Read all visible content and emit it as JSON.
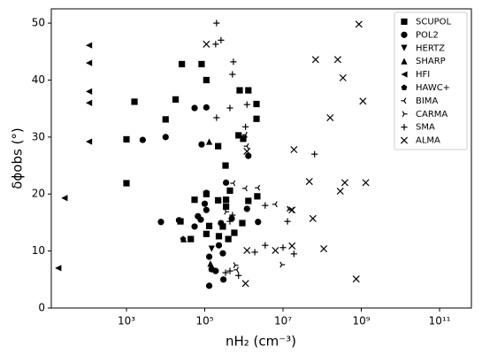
{
  "chart_data": {
    "type": "scatter",
    "xlabel": "nH₂ (cm⁻³)",
    "ylabel": "δϕobs (°)",
    "xscale": "log",
    "xlim": [
      12,
      650000000000.0
    ],
    "ylim": [
      0,
      52.5
    ],
    "xticks": [
      {
        "value": 1000,
        "label": "10³"
      },
      {
        "value": 100000,
        "label": "10⁵"
      },
      {
        "value": 10000000,
        "label": "10⁷"
      },
      {
        "value": 1000000000,
        "label": "10⁹"
      },
      {
        "value": 100000000000,
        "label": "10¹¹"
      }
    ],
    "yticks": [
      0,
      10,
      20,
      30,
      40,
      50
    ],
    "legend": "upper right",
    "series": [
      {
        "name": "SCUPOL",
        "marker": "square",
        "color": "#000000",
        "x": [
          1000,
          1000,
          1600,
          10000,
          18000,
          26000,
          83000,
          110000,
          340000,
          350000,
          780000,
          1300000,
          2100000,
          2100000,
          730000,
          960000,
          220000,
          55000,
          110000,
          440000,
          1300000,
          2200000,
          220000,
          350000,
          910000,
          570000,
          400000,
          230000,
          130000,
          110000,
          44000,
          24000,
          290000
        ],
        "values": [
          21.9,
          29.6,
          36.2,
          33.1,
          36.6,
          42.8,
          42.8,
          40,
          25,
          19,
          38.2,
          38.2,
          35.8,
          33.2,
          30.3,
          29.7,
          28.4,
          19,
          20,
          20.6,
          18.8,
          19.6,
          18.9,
          17.8,
          14.9,
          13.2,
          12.1,
          12.6,
          14.4,
          13,
          12.1,
          15.2,
          14.3
        ]
      },
      {
        "name": "POL2",
        "marker": "circle",
        "color": "#000000",
        "x": [
          7600,
          10000,
          2600,
          55000,
          110000,
          350000,
          83000,
          1300000,
          110000,
          100000,
          110000,
          67000,
          22000,
          55000,
          260000,
          490000,
          230000,
          130000,
          290000,
          150000,
          190000,
          300000,
          130000,
          2300000,
          1200000,
          79000
        ],
        "values": [
          15.1,
          30,
          29.5,
          35.1,
          35.2,
          22,
          28.7,
          26.7,
          20.2,
          18.3,
          17.2,
          16.1,
          15.4,
          14.3,
          14.9,
          15.7,
          11,
          9,
          9.6,
          6.8,
          6.5,
          5,
          3.9,
          15.1,
          17.4,
          15.5
        ]
      },
      {
        "name": "HERTZ",
        "marker": "triangle-down",
        "color": "#000000",
        "x": [
          150000
        ],
        "values": [
          10.4
        ]
      },
      {
        "name": "SHARP",
        "marker": "triangle-up",
        "color": "#000000",
        "x": [
          130000,
          29000,
          140000,
          150000
        ],
        "values": [
          29.2,
          12.1,
          7.8,
          7
        ]
      },
      {
        "name": "HFI",
        "marker": "triangle-left",
        "color": "#000000",
        "x": [
          110,
          110,
          110,
          110,
          110,
          26,
          18
        ],
        "values": [
          46.1,
          43,
          38,
          36,
          29.2,
          19.3,
          7
        ]
      },
      {
        "name": "HAWC+",
        "marker": "pentagon",
        "color": "#000000",
        "x": [
          28000
        ],
        "values": [
          12.1
        ]
      },
      {
        "name": "BIMA",
        "marker": "tri-left",
        "color": "#000000",
        "x": [
          540000,
          1100000,
          2300000,
          1100000,
          1200000,
          660000,
          6400000,
          17000000
        ],
        "values": [
          21.9,
          21,
          21.1,
          30.4,
          28.4,
          6.7,
          18.2,
          17.2
        ]
      },
      {
        "name": "CARMA",
        "marker": "tri-right",
        "color": "#000000",
        "x": [
          350000,
          600000,
          9300000,
          14000000
        ],
        "values": [
          16.9,
          7.5,
          7.6,
          17.4
        ]
      },
      {
        "name": "SMA",
        "marker": "plus",
        "color": "#000000",
        "x": [
          200000,
          190000,
          260000,
          540000,
          510000,
          200000,
          1200000,
          1100000,
          440000,
          510000,
          440000,
          3500000,
          3500000,
          10000000,
          13000000,
          1900000,
          64000000,
          19000000,
          440000,
          340000,
          730000
        ],
        "values": [
          50,
          46.3,
          47,
          43.2,
          41,
          33.4,
          35.7,
          31.8,
          35.1,
          16.3,
          15.2,
          18,
          11,
          10.6,
          15.2,
          9.8,
          27,
          9.5,
          6.5,
          6.2,
          5.7
        ]
      },
      {
        "name": "ALMA",
        "marker": "x",
        "color": "#000000",
        "x": [
          110000,
          870000000,
          68000000,
          250000000,
          340000000,
          160000000,
          1100000000,
          19000000,
          47000000,
          290000000,
          380000000,
          1300000000,
          17000000,
          58000000,
          1200000,
          6400000,
          17000000,
          110000000,
          740000000,
          1100000,
          1200000
        ],
        "values": [
          46.3,
          49.8,
          43.6,
          43.6,
          40.4,
          33.4,
          36.3,
          27.8,
          22.2,
          20.5,
          22,
          22,
          17.2,
          15.7,
          10.1,
          10.1,
          10.9,
          10.4,
          5.1,
          4.3,
          27.5
        ]
      }
    ]
  }
}
